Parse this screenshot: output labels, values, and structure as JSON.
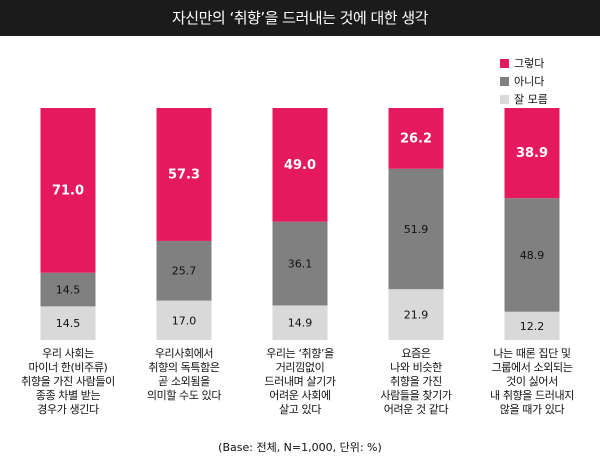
{
  "title": "자신만의 ‘취향’을 드러내는 것에 대한 생각",
  "footnote": "(Base: 전체, N=1,000, 단위: %)",
  "legend": [
    {
      "label": "그렇다",
      "color": "#e5195e"
    },
    {
      "label": "아니다",
      "color": "#808080"
    },
    {
      "label": "잘 모름",
      "color": "#d9d9d9"
    }
  ],
  "chart_data": {
    "type": "bar",
    "stacked": true,
    "ylim": [
      0,
      100
    ],
    "categories": [
      "우리 사회는\n마이너 한(비주류)\n취향을 가진 사람들이\n종종 차별 받는\n경우가 생긴다",
      "우리사회에서\n취향의 독특함은\n곧 소외됨을\n의미할 수도 있다",
      "우리는 ‘취향’을\n거리낌없이\n드러내며 살기가\n어려운 사회에\n살고 있다",
      "요즘은\n나와 비슷한\n취향을 가진\n사람들을 찾기가\n어려운 것 같다",
      "나는 때론 집단 및\n그룹에서 소외되는\n것이 싫어서\n내 취향을 드러내지\n않을 때가 있다"
    ],
    "series": [
      {
        "name": "잘 모름",
        "color": "#d9d9d9",
        "values": [
          14.5,
          17.0,
          14.9,
          21.9,
          12.2
        ]
      },
      {
        "name": "아니다",
        "color": "#808080",
        "values": [
          14.5,
          25.7,
          36.1,
          51.9,
          48.9
        ]
      },
      {
        "name": "그렇다",
        "color": "#e5195e",
        "values": [
          71.0,
          57.3,
          49.0,
          26.2,
          38.9
        ]
      }
    ]
  }
}
